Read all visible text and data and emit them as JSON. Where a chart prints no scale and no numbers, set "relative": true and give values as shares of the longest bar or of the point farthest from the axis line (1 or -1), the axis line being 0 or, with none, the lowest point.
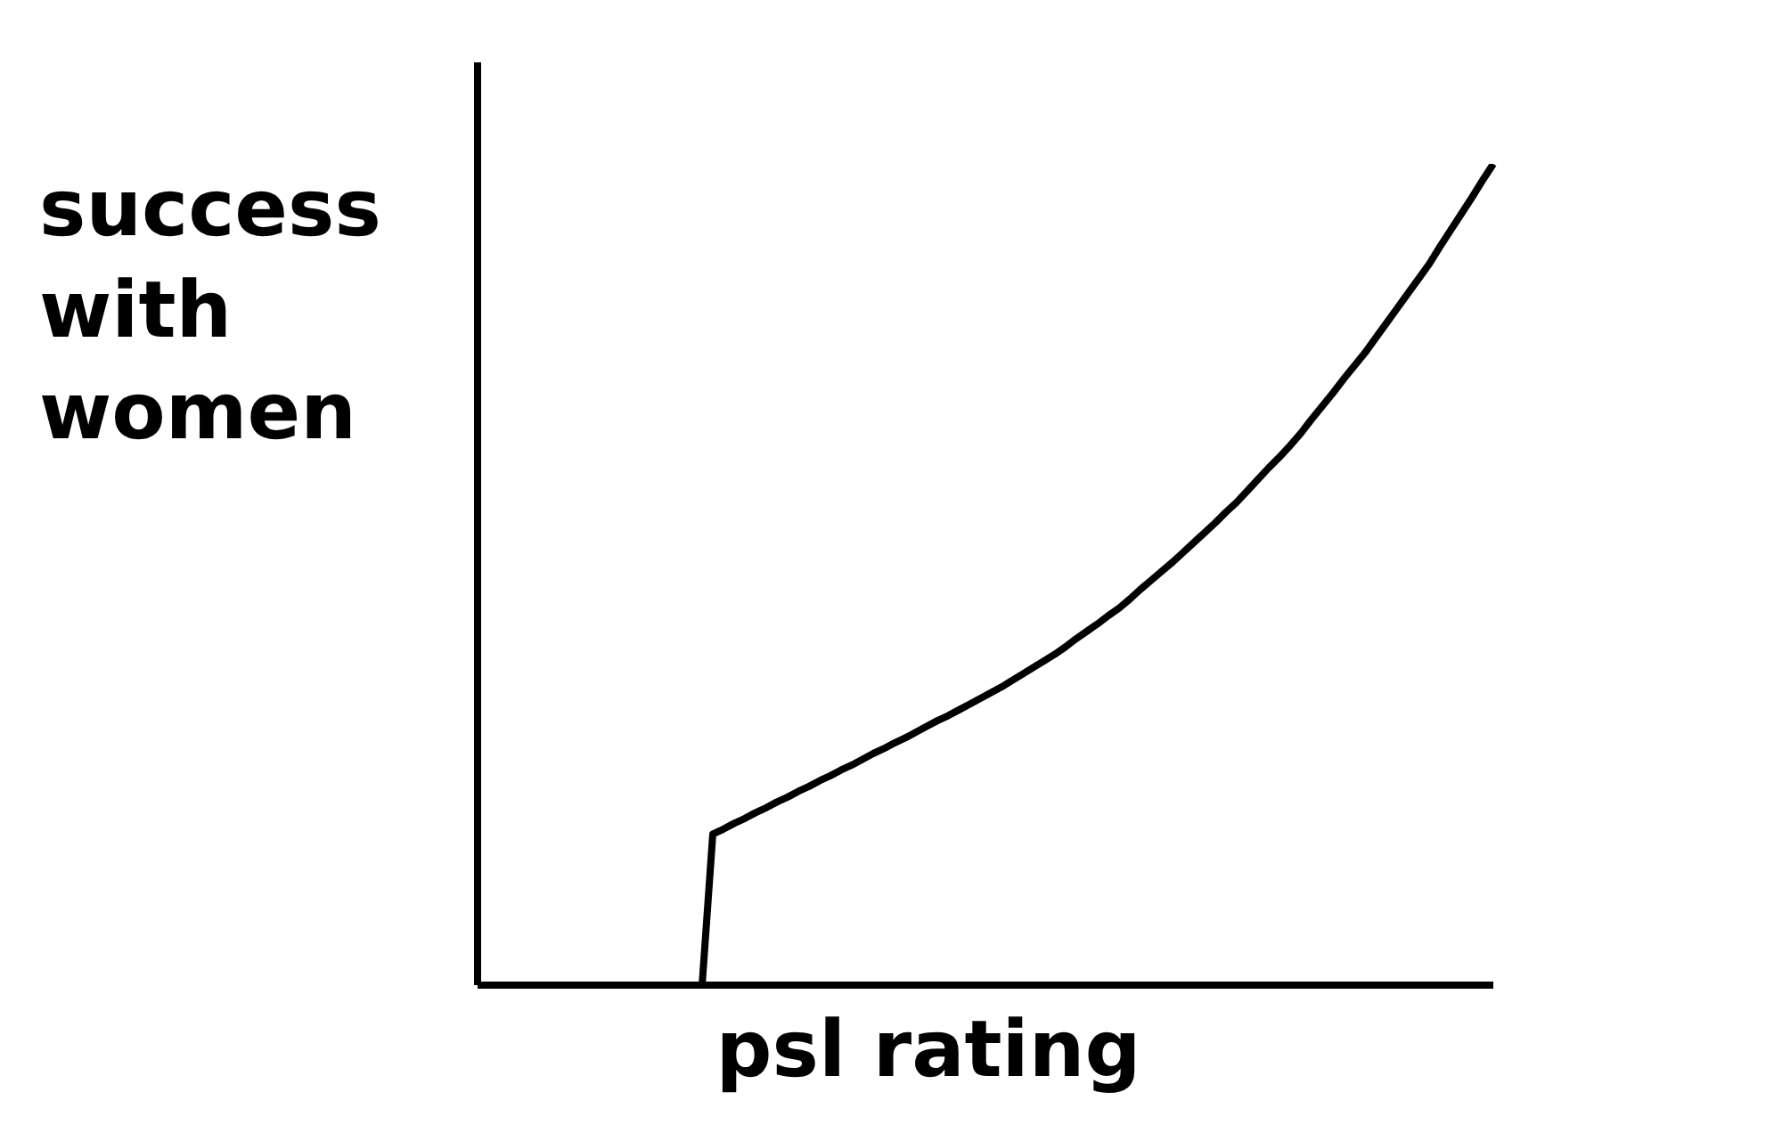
{
  "chart_data": {
    "type": "line",
    "xlabel": "psl rating",
    "ylabel": "success with women",
    "relative": true,
    "categories": [
      null,
      null,
      null,
      null,
      null,
      null,
      null,
      null,
      null,
      null,
      null,
      null,
      null,
      null,
      null,
      null,
      null,
      null,
      null,
      null,
      null,
      null,
      null,
      null,
      null,
      null,
      null,
      null,
      null,
      null,
      null,
      null,
      null,
      null,
      null,
      null,
      null,
      null,
      null,
      null,
      null,
      null,
      null,
      null,
      null,
      null,
      null,
      null,
      null,
      null,
      null,
      null,
      null,
      null,
      null,
      null,
      null,
      null,
      null,
      null,
      null,
      null,
      null,
      null,
      null,
      null,
      null,
      null,
      null,
      null,
      null,
      null,
      null,
      null,
      null,
      null,
      null,
      null,
      null,
      null,
      null,
      null,
      null,
      null,
      null,
      null,
      null,
      null,
      null,
      null,
      null,
      null,
      null,
      null,
      null,
      null
    ],
    "series": [
      {
        "color": "#000000",
        "values": [
          null,
          null,
          null,
          null,
          null,
          null,
          null,
          null,
          null,
          null,
          null,
          null,
          null,
          null,
          null,
          null,
          null,
          null,
          null,
          null,
          null,
          0,
          0.184,
          0.19,
          0.197,
          0.203,
          0.21,
          0.216,
          0.223,
          0.229,
          0.236,
          0.242,
          0.249,
          0.255,
          0.262,
          0.268,
          0.275,
          0.282,
          0.288,
          0.295,
          0.301,
          0.308,
          0.315,
          0.322,
          0.328,
          0.335,
          0.342,
          0.349,
          0.356,
          0.363,
          0.371,
          0.379,
          0.387,
          0.395,
          0.403,
          0.412,
          0.422,
          0.431,
          0.44,
          0.45,
          0.459,
          0.47,
          0.482,
          0.493,
          0.504,
          0.515,
          0.527,
          0.539,
          0.551,
          0.563,
          0.576,
          0.588,
          0.602,
          0.616,
          0.63,
          0.643,
          0.657,
          0.672,
          0.689,
          0.705,
          0.721,
          0.738,
          0.754,
          0.77,
          0.788,
          0.806,
          0.824,
          0.842,
          0.86,
          0.878,
          0.899,
          0.919,
          0.939,
          0.959,
          0.98,
          1.0
        ]
      }
    ]
  }
}
